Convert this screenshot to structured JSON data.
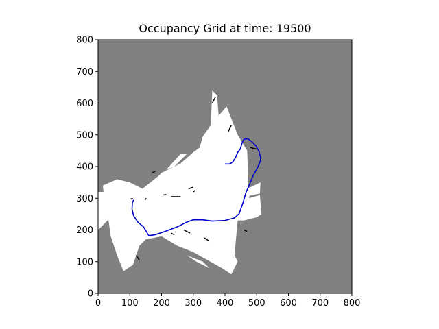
{
  "chart_data": {
    "type": "heatmap",
    "title": "Occupancy Grid at time: 19500",
    "xlabel": "",
    "ylabel": "",
    "xlim": [
      0,
      800
    ],
    "ylim": [
      0,
      800
    ],
    "x_ticks": [
      0,
      100,
      200,
      300,
      400,
      500,
      600,
      700,
      800
    ],
    "y_ticks": [
      0,
      100,
      200,
      300,
      400,
      500,
      600,
      700,
      800
    ],
    "grid": false,
    "colors": {
      "unknown": "#808080",
      "free": "#ffffff",
      "occupied": "#000000",
      "trajectory": "#0000cc"
    },
    "free_space_regions": [
      [
        [
          140,
          330
        ],
        [
          190,
          370
        ],
        [
          200,
          380
        ],
        [
          240,
          400
        ],
        [
          260,
          410
        ],
        [
          300,
          445
        ],
        [
          320,
          460
        ],
        [
          330,
          495
        ],
        [
          355,
          530
        ],
        [
          360,
          640
        ],
        [
          375,
          625
        ],
        [
          380,
          560
        ],
        [
          405,
          590
        ],
        [
          440,
          500
        ],
        [
          470,
          450
        ],
        [
          475,
          300
        ],
        [
          510,
          310
        ],
        [
          515,
          250
        ],
        [
          500,
          240
        ],
        [
          460,
          230
        ],
        [
          440,
          230
        ],
        [
          430,
          120
        ],
        [
          440,
          100
        ],
        [
          420,
          60
        ],
        [
          390,
          80
        ],
        [
          300,
          130
        ],
        [
          250,
          150
        ],
        [
          200,
          180
        ],
        [
          150,
          170
        ],
        [
          130,
          150
        ],
        [
          110,
          90
        ],
        [
          80,
          70
        ],
        [
          60,
          120
        ],
        [
          40,
          180
        ],
        [
          30,
          250
        ],
        [
          20,
          290
        ],
        [
          15,
          340
        ],
        [
          60,
          360
        ],
        [
          100,
          350
        ],
        [
          120,
          340
        ]
      ],
      [
        [
          385,
          420
        ],
        [
          400,
          360
        ],
        [
          480,
          320
        ],
        [
          470,
          270
        ],
        [
          440,
          290
        ],
        [
          420,
          310
        ],
        [
          390,
          350
        ]
      ],
      [
        [
          0,
          200
        ],
        [
          30,
          230
        ],
        [
          50,
          270
        ],
        [
          40,
          320
        ],
        [
          0,
          320
        ]
      ],
      [
        [
          215,
          390
        ],
        [
          260,
          440
        ],
        [
          280,
          440
        ],
        [
          240,
          400
        ]
      ],
      [
        [
          440,
          300
        ],
        [
          510,
          315
        ],
        [
          512,
          350
        ],
        [
          470,
          330
        ]
      ],
      [
        [
          280,
          120
        ],
        [
          330,
          100
        ],
        [
          350,
          80
        ],
        [
          310,
          100
        ]
      ]
    ],
    "occupied_segments": [
      [
        [
          103,
          298
        ],
        [
          110,
          298
        ]
      ],
      [
        [
          148,
          295
        ],
        [
          152,
          300
        ]
      ],
      [
        [
          205,
          310
        ],
        [
          215,
          312
        ]
      ],
      [
        [
          230,
          305
        ],
        [
          260,
          305
        ]
      ],
      [
        [
          300,
          320
        ],
        [
          306,
          325
        ]
      ],
      [
        [
          480,
          460
        ],
        [
          500,
          455
        ]
      ],
      [
        [
          335,
          175
        ],
        [
          350,
          165
        ]
      ],
      [
        [
          230,
          190
        ],
        [
          240,
          185
        ]
      ],
      [
        [
          120,
          120
        ],
        [
          130,
          105
        ]
      ],
      [
        [
          410,
          510
        ],
        [
          420,
          530
        ]
      ],
      [
        [
          360,
          600
        ],
        [
          370,
          620
        ]
      ],
      [
        [
          285,
          330
        ],
        [
          300,
          335
        ]
      ],
      [
        [
          170,
          380
        ],
        [
          180,
          385
        ]
      ],
      [
        [
          270,
          200
        ],
        [
          290,
          190
        ]
      ],
      [
        [
          460,
          200
        ],
        [
          470,
          195
        ]
      ]
    ],
    "trajectory": [
      [
        112,
        295
      ],
      [
        108,
        285
      ],
      [
        107,
        265
      ],
      [
        112,
        245
      ],
      [
        125,
        225
      ],
      [
        143,
        210
      ],
      [
        160,
        182
      ],
      [
        180,
        185
      ],
      [
        210,
        195
      ],
      [
        250,
        210
      ],
      [
        280,
        225
      ],
      [
        300,
        232
      ],
      [
        330,
        232
      ],
      [
        360,
        228
      ],
      [
        400,
        230
      ],
      [
        430,
        238
      ],
      [
        445,
        252
      ],
      [
        452,
        272
      ],
      [
        458,
        290
      ],
      [
        466,
        318
      ],
      [
        478,
        345
      ],
      [
        488,
        370
      ],
      [
        498,
        388
      ],
      [
        505,
        402
      ],
      [
        512,
        418
      ],
      [
        512,
        430
      ],
      [
        507,
        448
      ],
      [
        498,
        465
      ],
      [
        485,
        478
      ],
      [
        472,
        488
      ],
      [
        460,
        486
      ],
      [
        455,
        478
      ],
      [
        452,
        468
      ],
      [
        448,
        455
      ],
      [
        440,
        445
      ],
      [
        434,
        430
      ],
      [
        425,
        415
      ],
      [
        415,
        408
      ],
      [
        402,
        408
      ],
      [
        400,
        408
      ]
    ]
  }
}
